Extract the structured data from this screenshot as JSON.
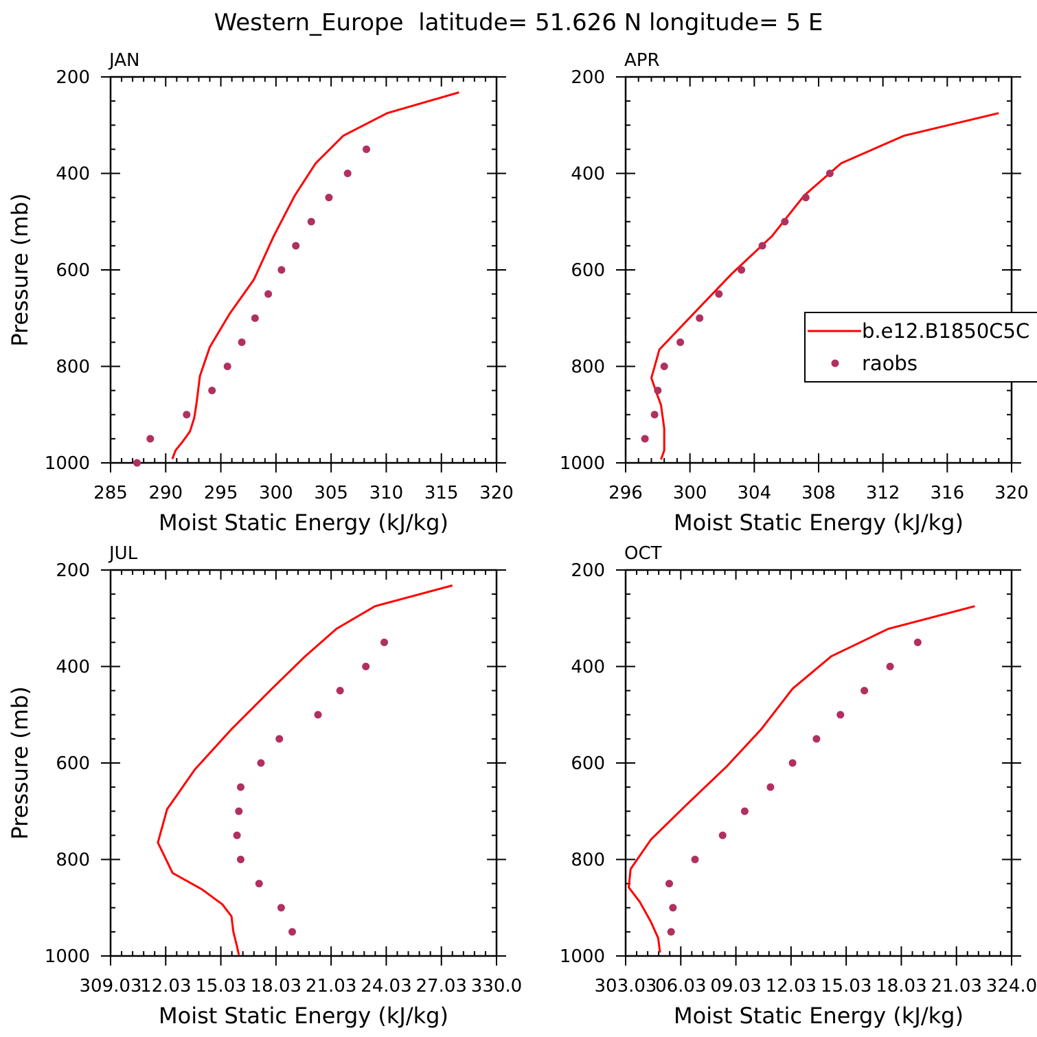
{
  "figure": {
    "title": "Western_Europe  latitude= 51.626 N longitude= 5 E",
    "line_color": "#ff0000",
    "marker_color": "#b03060"
  },
  "legend": {
    "entries": [
      {
        "label": "b.e12.B1850C5C",
        "kind": "line"
      },
      {
        "label": "raobs",
        "kind": "marker"
      }
    ]
  },
  "chart_data": [
    {
      "type": "scatter",
      "panel_label": "JAN",
      "xlabel": "Moist Static Energy (kJ/kg)",
      "ylabel": "Pressure (mb)",
      "xlim": [
        285,
        320
      ],
      "ylim": [
        1000,
        200
      ],
      "xticks": [
        "285",
        "290",
        "295",
        "300",
        "305",
        "310",
        "315",
        "320"
      ],
      "yticks": [
        "200",
        "400",
        "600",
        "800",
        "1000"
      ],
      "series": [
        {
          "name": "b.e12.B1850C5C",
          "kind": "line",
          "x": [
            290.6,
            290.9,
            291.5,
            292.2,
            292.6,
            292.8,
            293.1,
            294.0,
            295.8,
            298.0,
            299.8,
            301.7,
            303.6,
            306.1,
            310.1,
            316.6
          ],
          "y": [
            992,
            974,
            957,
            935,
            906,
            876,
            820,
            760,
            691,
            620,
            530,
            446,
            379,
            322,
            275,
            232
          ]
        },
        {
          "name": "raobs",
          "kind": "marker",
          "x": [
            287.4,
            288.6,
            291.9,
            294.2,
            295.6,
            296.9,
            298.1,
            299.3,
            300.5,
            301.8,
            303.2,
            304.8,
            306.5,
            308.2
          ],
          "y": [
            1000,
            950,
            900,
            850,
            800,
            750,
            700,
            650,
            600,
            550,
            500,
            450,
            400,
            350
          ]
        }
      ]
    },
    {
      "type": "scatter",
      "panel_label": "APR",
      "xlabel": "Moist Static Energy (kJ/kg)",
      "ylabel": "",
      "xlim": [
        296,
        320
      ],
      "ylim": [
        1000,
        200
      ],
      "xticks": [
        "296",
        "300",
        "304",
        "308",
        "312",
        "316",
        "320"
      ],
      "yticks": [
        "200",
        "400",
        "600",
        "800",
        "1000"
      ],
      "series": [
        {
          "name": "b.e12.B1850C5C",
          "kind": "line",
          "x": [
            298.2,
            298.4,
            298.4,
            298.2,
            297.9,
            297.6,
            298.1,
            300.3,
            302.6,
            305.1,
            307.1,
            309.4,
            313.3,
            319.2
          ],
          "y": [
            993,
            974,
            929,
            880,
            853,
            824,
            765,
            688,
            608,
            530,
            446,
            379,
            322,
            275
          ]
        },
        {
          "name": "raobs",
          "kind": "marker",
          "x": [
            297.2,
            297.8,
            298.0,
            298.4,
            299.4,
            300.6,
            301.8,
            303.2,
            304.5,
            305.9,
            307.2,
            308.7
          ],
          "y": [
            950,
            900,
            850,
            800,
            750,
            700,
            650,
            600,
            550,
            500,
            450,
            400
          ]
        }
      ]
    },
    {
      "type": "scatter",
      "panel_label": "JUL",
      "xlabel": "Moist Static Energy (kJ/kg)",
      "ylabel": "Pressure (mb)",
      "xlim": [
        309.03,
        330.0
      ],
      "ylim": [
        1000,
        200
      ],
      "xticks": [
        "309.03",
        "12.03",
        "15.03",
        "18.03",
        "21.03",
        "24.03",
        "27.03",
        "330.0"
      ],
      "yticks": [
        "200",
        "400",
        "600",
        "800",
        "1000"
      ],
      "series": [
        {
          "name": "b.e12.B1850C5C",
          "kind": "line",
          "x": [
            316.0,
            315.9,
            315.7,
            315.6,
            315.1,
            314.0,
            312.4,
            311.6,
            312.1,
            313.6,
            315.6,
            317.8,
            319.6,
            321.3,
            323.4,
            327.6
          ],
          "y": [
            998,
            980,
            950,
            918,
            893,
            862,
            828,
            765,
            696,
            614,
            530,
            446,
            379,
            322,
            275,
            232
          ]
        },
        {
          "name": "raobs",
          "kind": "marker",
          "x": [
            318.9,
            318.3,
            317.1,
            316.1,
            315.9,
            316.0,
            316.1,
            317.2,
            318.2,
            320.3,
            321.5,
            322.9,
            323.9
          ],
          "y": [
            950,
            900,
            850,
            800,
            750,
            700,
            650,
            600,
            550,
            500,
            450,
            400,
            350
          ]
        }
      ]
    },
    {
      "type": "scatter",
      "panel_label": "OCT",
      "xlabel": "Moist Static Energy (kJ/kg)",
      "ylabel": "",
      "xlim": [
        303.03,
        324.0
      ],
      "ylim": [
        1000,
        200
      ],
      "xticks": [
        "303.03",
        "06.03",
        "09.03",
        "12.03",
        "15.03",
        "18.03",
        "21.03",
        "324.0"
      ],
      "yticks": [
        "200",
        "400",
        "600",
        "800",
        "1000"
      ],
      "series": [
        {
          "name": "b.e12.B1850C5C",
          "kind": "line",
          "x": [
            304.9,
            304.8,
            304.4,
            303.8,
            303.2,
            303.3,
            304.4,
            306.3,
            308.5,
            310.4,
            312.1,
            314.2,
            317.3,
            322.0
          ],
          "y": [
            993,
            963,
            929,
            888,
            858,
            820,
            759,
            688,
            608,
            530,
            446,
            379,
            322,
            275
          ]
        },
        {
          "name": "raobs",
          "kind": "marker",
          "x": [
            305.5,
            305.6,
            305.4,
            306.8,
            308.3,
            309.5,
            310.9,
            312.1,
            313.4,
            314.7,
            316.0,
            317.4,
            318.9
          ],
          "y": [
            950,
            900,
            850,
            800,
            750,
            700,
            650,
            600,
            550,
            500,
            450,
            400,
            350
          ]
        }
      ]
    }
  ]
}
